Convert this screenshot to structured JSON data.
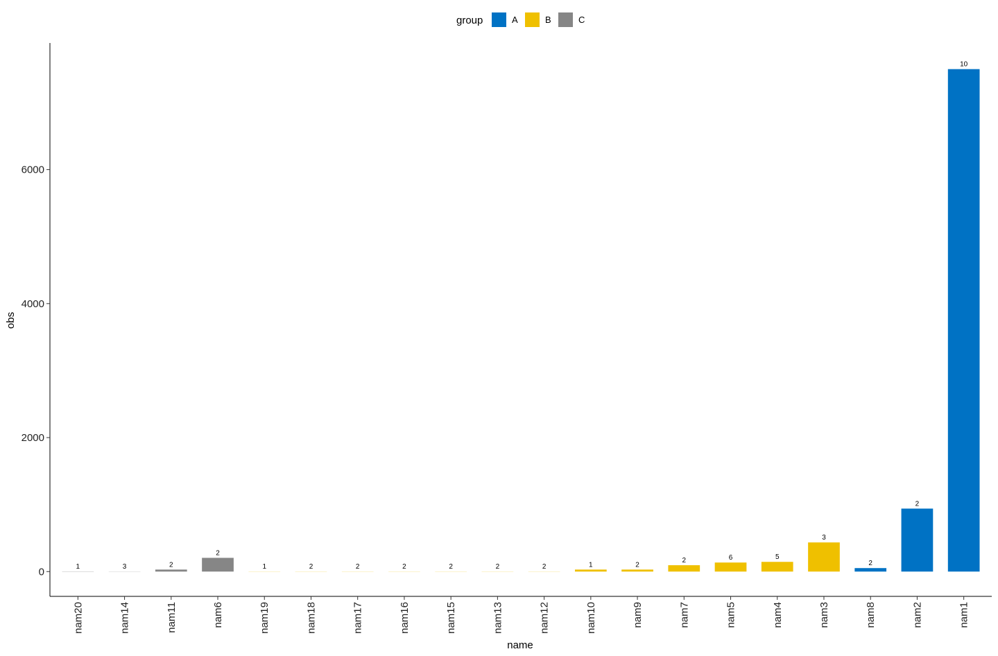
{
  "chart_data": {
    "type": "bar",
    "x_label": "name",
    "y_label": "obs",
    "legend_title": "group",
    "categories": [
      "nam20",
      "nam14",
      "nam11",
      "nam6",
      "nam19",
      "nam18",
      "nam17",
      "nam16",
      "nam15",
      "nam13",
      "nam12",
      "nam10",
      "nam9",
      "nam7",
      "nam5",
      "nam4",
      "nam3",
      "nam8",
      "nam2",
      "nam1"
    ],
    "series": [
      {
        "name": "A",
        "color": "#0072c4",
        "values": [
          null,
          null,
          null,
          null,
          null,
          null,
          null,
          null,
          null,
          null,
          null,
          null,
          null,
          null,
          null,
          null,
          null,
          52,
          940,
          7500
        ]
      },
      {
        "name": "B",
        "color": "#efc000",
        "values": [
          null,
          null,
          null,
          null,
          2,
          2,
          2,
          2,
          2,
          2,
          2,
          30,
          30,
          95,
          135,
          145,
          435,
          null,
          null,
          null
        ]
      },
      {
        "name": "C",
        "color": "#868686",
        "values": [
          3,
          2,
          30,
          205,
          null,
          null,
          null,
          null,
          null,
          null,
          null,
          null,
          null,
          null,
          null,
          null,
          null,
          null,
          null,
          null
        ]
      }
    ],
    "bar_labels": [
      1,
      3,
      2,
      2,
      1,
      2,
      2,
      2,
      2,
      2,
      2,
      1,
      2,
      2,
      6,
      5,
      3,
      2,
      2,
      10
    ],
    "ylim": [
      -370,
      7890
    ],
    "yticks": [
      0,
      2000,
      4000,
      6000
    ],
    "legend_position": "top"
  }
}
